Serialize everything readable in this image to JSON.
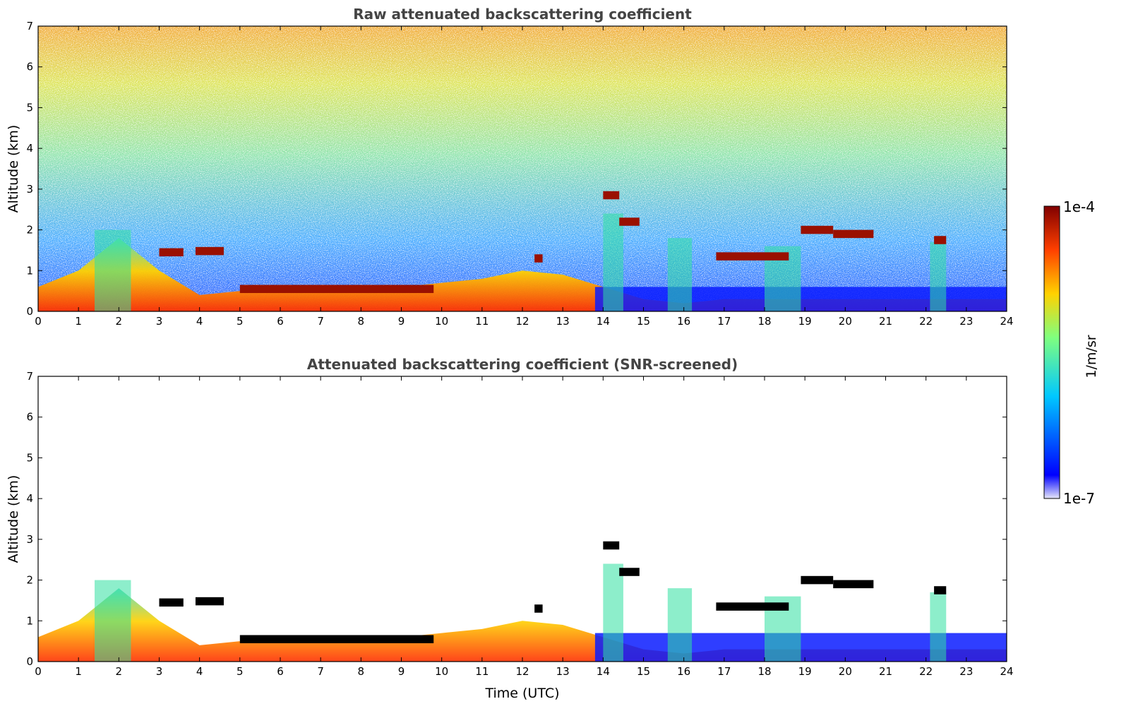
{
  "colors": {
    "jet_stops": [
      "#e6e6f8",
      "#0000ff",
      "#00c8ff",
      "#7fff7f",
      "#ffd200",
      "#ff4000",
      "#800000"
    ],
    "cloud_core": "#000000",
    "axis": "#000000",
    "title": "#444444"
  },
  "chart_data": [
    {
      "type": "heatmap",
      "title": "Raw attenuated backscattering coefficient",
      "xlabel": "",
      "ylabel": "Altitude (km)",
      "xlim": [
        0,
        24
      ],
      "ylim": [
        0,
        7
      ],
      "x_ticks": [
        "0",
        "1",
        "2",
        "3",
        "4",
        "5",
        "6",
        "7",
        "8",
        "9",
        "10",
        "11",
        "12",
        "13",
        "14",
        "15",
        "16",
        "17",
        "18",
        "19",
        "20",
        "21",
        "22",
        "23",
        "24"
      ],
      "y_ticks": [
        "0",
        "1",
        "2",
        "3",
        "4",
        "5",
        "6",
        "7"
      ],
      "screened": false,
      "boundary_layer_top": [
        [
          0,
          0.6
        ],
        [
          1,
          1.0
        ],
        [
          2,
          1.8
        ],
        [
          3,
          1.0
        ],
        [
          4,
          0.4
        ],
        [
          5,
          0.5
        ],
        [
          6,
          0.6
        ],
        [
          7,
          0.5
        ],
        [
          8,
          0.6
        ],
        [
          9,
          0.6
        ],
        [
          10,
          0.7
        ],
        [
          11,
          0.8
        ],
        [
          12,
          1.0
        ],
        [
          13,
          0.9
        ],
        [
          14,
          0.6
        ],
        [
          15,
          0.3
        ],
        [
          16,
          0.2
        ],
        [
          17,
          0.3
        ],
        [
          18,
          0.3
        ],
        [
          19,
          0.3
        ],
        [
          20,
          0.3
        ],
        [
          21,
          0.3
        ],
        [
          22,
          0.3
        ],
        [
          23,
          0.3
        ],
        [
          24,
          0.3
        ]
      ],
      "cloud_layers": [
        {
          "start": 3.0,
          "end": 3.6,
          "alt": 1.45
        },
        {
          "start": 3.9,
          "end": 4.6,
          "alt": 1.48
        },
        {
          "start": 5.0,
          "end": 9.8,
          "alt": 0.55
        },
        {
          "start": 12.3,
          "end": 12.5,
          "alt": 1.3
        },
        {
          "start": 14.0,
          "end": 14.4,
          "alt": 2.85
        },
        {
          "start": 14.4,
          "end": 14.9,
          "alt": 2.2
        },
        {
          "start": 16.8,
          "end": 18.6,
          "alt": 1.35
        },
        {
          "start": 18.9,
          "end": 19.7,
          "alt": 2.0
        },
        {
          "start": 19.7,
          "end": 20.7,
          "alt": 1.9
        },
        {
          "start": 22.2,
          "end": 22.5,
          "alt": 1.75
        }
      ]
    },
    {
      "type": "heatmap",
      "title": "Attenuated backscattering coefficient (SNR-screened)",
      "xlabel": "Time (UTC)",
      "ylabel": "Altitude (km)",
      "xlim": [
        0,
        24
      ],
      "ylim": [
        0,
        7
      ],
      "x_ticks": [
        "0",
        "1",
        "2",
        "3",
        "4",
        "5",
        "6",
        "7",
        "8",
        "9",
        "10",
        "11",
        "12",
        "13",
        "14",
        "15",
        "16",
        "17",
        "18",
        "19",
        "20",
        "21",
        "22",
        "23",
        "24"
      ],
      "y_ticks": [
        "0",
        "1",
        "2",
        "3",
        "4",
        "5",
        "6",
        "7"
      ],
      "screened": true
    }
  ],
  "colorbar": {
    "label": "1/m/sr",
    "max_label": "1e-4",
    "min_label": "1e-7",
    "scale": "log"
  }
}
